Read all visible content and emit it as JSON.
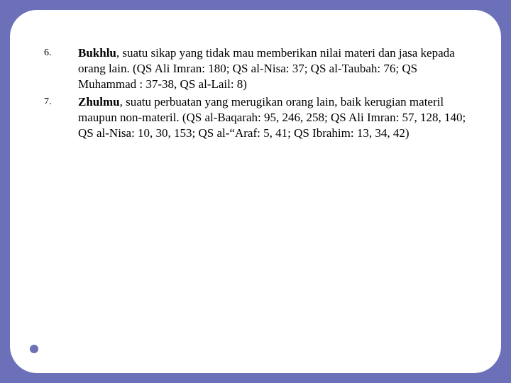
{
  "colors": {
    "background": "#6b70b8",
    "slide_bg": "#ffffff",
    "underline": "#2f2f2f",
    "dot": "#6b70b8",
    "text": "#000000"
  },
  "typography": {
    "body_family": "Times New Roman",
    "body_size_pt": 13,
    "number_size_pt": 10
  },
  "items": [
    {
      "number": "6.",
      "term": "Bukhlu",
      "rest": ", suatu sikap yang tidak mau memberikan nilai materi dan jasa kepada orang lain. (QS Ali Imran: 180; QS al-Nisa: 37; QS al-Taubah: 76; QS Muhammad : 37-38, QS al-Lail: 8)"
    },
    {
      "number": "7.",
      "term": "Zhulmu",
      "rest": ", suatu perbuatan yang merugikan orang lain, baik kerugian materil maupun non-materil. (QS al-Baqarah: 95, 246, 258; QS Ali Imran: 57, 128, 140; QS al-Nisa:  10, 30, 153; QS al-“Araf: 5, 41; QS Ibrahim: 13, 34, 42)"
    }
  ]
}
